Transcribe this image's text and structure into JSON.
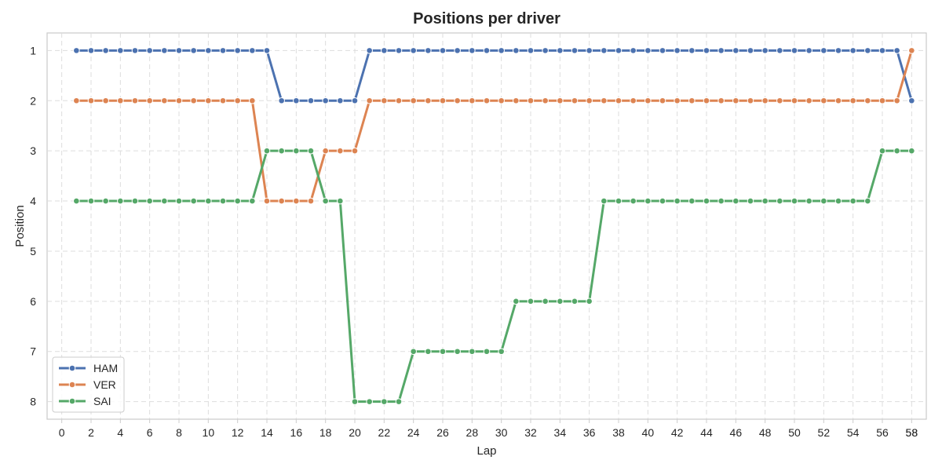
{
  "chart_data": {
    "type": "line",
    "title": "Positions per driver",
    "xlabel": "Lap",
    "ylabel": "Position",
    "xlim": [
      -1,
      59
    ],
    "ylim": [
      8.35,
      0.65
    ],
    "y_inverted": true,
    "grid": true,
    "grid_style": "dashed",
    "legend_position": "lower-left",
    "x_tick_labels": [
      "0",
      "2",
      "4",
      "6",
      "8",
      "10",
      "12",
      "14",
      "16",
      "18",
      "20",
      "22",
      "24",
      "26",
      "28",
      "30",
      "32",
      "34",
      "36",
      "38",
      "40",
      "42",
      "44",
      "46",
      "48",
      "50",
      "52",
      "54",
      "56",
      "58"
    ],
    "x_tick_values": [
      0,
      2,
      4,
      6,
      8,
      10,
      12,
      14,
      16,
      18,
      20,
      22,
      24,
      26,
      28,
      30,
      32,
      34,
      36,
      38,
      40,
      42,
      44,
      46,
      48,
      50,
      52,
      54,
      56,
      58
    ],
    "x_extra_tick_labels": [
      "58"
    ],
    "x_extra_tick_values": [
      58
    ],
    "y_tick_labels": [
      "1",
      "2",
      "3",
      "4",
      "5",
      "6",
      "7",
      "8"
    ],
    "y_tick_values": [
      1,
      2,
      3,
      4,
      5,
      6,
      7,
      8
    ],
    "x": [
      1,
      2,
      3,
      4,
      5,
      6,
      7,
      8,
      9,
      10,
      11,
      12,
      13,
      14,
      15,
      16,
      17,
      18,
      19,
      20,
      21,
      22,
      23,
      24,
      25,
      26,
      27,
      28,
      29,
      30,
      31,
      32,
      33,
      34,
      35,
      36,
      37,
      38,
      39,
      40,
      41,
      42,
      43,
      44,
      45,
      46,
      47,
      48,
      49,
      50,
      51,
      52,
      53,
      54,
      55,
      56,
      57,
      58
    ],
    "series": [
      {
        "name": "HAM",
        "color": "#4c72b0",
        "values": [
          1,
          1,
          1,
          1,
          1,
          1,
          1,
          1,
          1,
          1,
          1,
          1,
          1,
          1,
          2,
          2,
          2,
          2,
          2,
          2,
          1,
          1,
          1,
          1,
          1,
          1,
          1,
          1,
          1,
          1,
          1,
          1,
          1,
          1,
          1,
          1,
          1,
          1,
          1,
          1,
          1,
          1,
          1,
          1,
          1,
          1,
          1,
          1,
          1,
          1,
          1,
          1,
          1,
          1,
          1,
          1,
          1,
          2
        ]
      },
      {
        "name": "VER",
        "color": "#dd8452",
        "values": [
          2,
          2,
          2,
          2,
          2,
          2,
          2,
          2,
          2,
          2,
          2,
          2,
          2,
          4,
          4,
          4,
          4,
          3,
          3,
          3,
          2,
          2,
          2,
          2,
          2,
          2,
          2,
          2,
          2,
          2,
          2,
          2,
          2,
          2,
          2,
          2,
          2,
          2,
          2,
          2,
          2,
          2,
          2,
          2,
          2,
          2,
          2,
          2,
          2,
          2,
          2,
          2,
          2,
          2,
          2,
          2,
          2,
          1
        ]
      },
      {
        "name": "SAI",
        "color": "#55a868",
        "values": [
          4,
          4,
          4,
          4,
          4,
          4,
          4,
          4,
          4,
          4,
          4,
          4,
          4,
          3,
          3,
          3,
          3,
          4,
          4,
          8,
          8,
          8,
          8,
          7,
          7,
          7,
          7,
          7,
          7,
          7,
          6,
          6,
          6,
          6,
          6,
          6,
          4,
          4,
          4,
          4,
          4,
          4,
          4,
          4,
          4,
          4,
          4,
          4,
          4,
          4,
          4,
          4,
          4,
          4,
          4,
          3,
          3,
          3
        ]
      }
    ]
  }
}
